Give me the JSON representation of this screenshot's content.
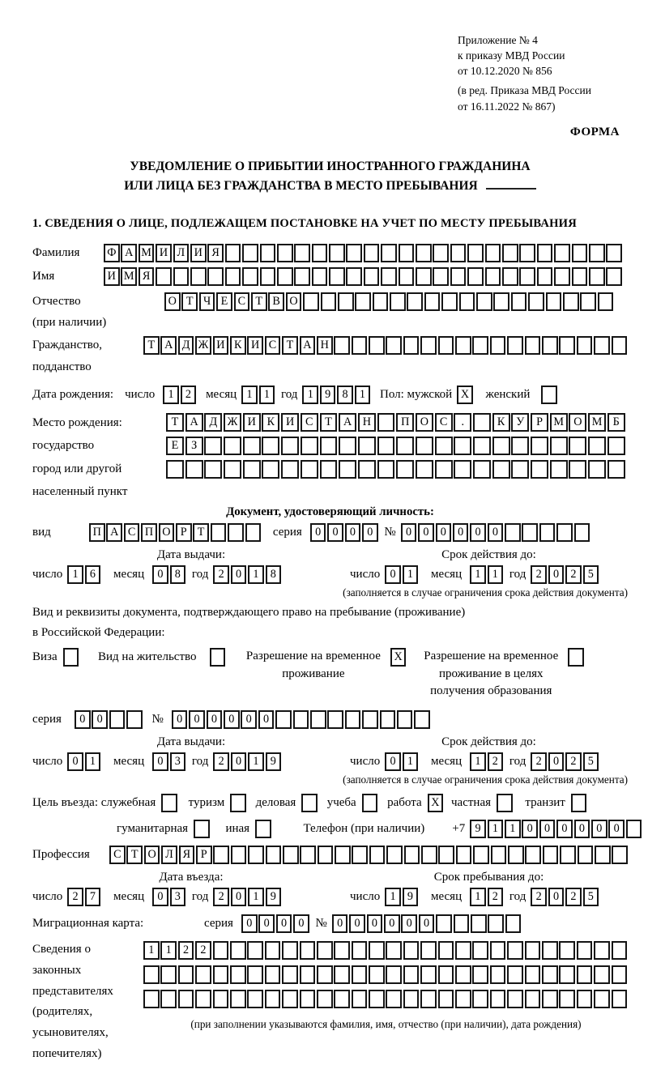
{
  "header": {
    "line1": "Приложение № 4",
    "line2": "к приказу МВД России",
    "line3": "от 10.12.2020 № 856",
    "line4": "(в ред. Приказа МВД России",
    "line5": "от 16.11.2022 № 867)",
    "forma": "ФОРМА"
  },
  "title": {
    "line1": "УВЕДОМЛЕНИЕ О ПРИБЫТИИ ИНОСТРАННОГО ГРАЖДАНИНА",
    "line2": "ИЛИ ЛИЦА БЕЗ ГРАЖДАНСТВА В МЕСТО ПРЕБЫВАНИЯ"
  },
  "section1": "1. СВЕДЕНИЯ О ЛИЦЕ, ПОДЛЕЖАЩЕМ ПОСТАНОВКЕ НА УЧЕТ ПО МЕСТУ ПРЕБЫВАНИЯ",
  "labels": {
    "surname": "Фамилия",
    "name": "Имя",
    "patronymic_l1": "Отчество",
    "patronymic_l2": "(при наличии)",
    "citizenship_l1": "Гражданство,",
    "citizenship_l2": "подданство",
    "birthdate": "Дата рождения:",
    "day": "число",
    "month": "месяц",
    "year": "год",
    "sex": "Пол: мужской",
    "female": "женский",
    "birthplace_l1": "Место рождения:",
    "birthplace_l2": "государство",
    "birthplace_l3": "город или другой",
    "birthplace_l4": "населенный пункт",
    "id_doc_header": "Документ, удостоверяющий личность:",
    "vid": "вид",
    "seriya": "серия",
    "num": "№",
    "issue_date": "Дата выдачи:",
    "valid_until": "Срок действия до:",
    "valid_note": "(заполняется в случае ограничения срока действия документа)",
    "stay_doc_l1": "Вид и реквизиты документа, подтверждающего право на пребывание (проживание)",
    "stay_doc_l2": "в Российской Федерации:",
    "visa": "Виза",
    "residence_permit": "Вид на жительство",
    "rvp_l1": "Разрешение на временное",
    "rvp_l2": "проживание",
    "rvpo_l1": "Разрешение на временное",
    "rvpo_l2": "проживание в целях",
    "rvpo_l3": "получения образования",
    "purpose": "Цель въезда: служебная",
    "tourism": "туризм",
    "business": "деловая",
    "study": "учеба",
    "work": "работа",
    "private": "частная",
    "transit": "транзит",
    "humanitarian": "гуманитарная",
    "other": "иная",
    "phone": "Телефон (при наличии)",
    "plus7": "+7",
    "profession": "Профессия",
    "entry_date": "Дата въезда:",
    "stay_until": "Срок пребывания до:",
    "migration_card": "Миграционная карта:",
    "rep_l1": "Сведения о",
    "rep_l2": "законных",
    "rep_l3": "представителях",
    "rep_l4": "(родителях,",
    "rep_l5": "усыновителях,",
    "rep_l6": "попечителях)",
    "rep_note": "(при заполнении указываются фамилия, имя, отчество (при наличии), дата рождения)"
  },
  "fields": {
    "surname": {
      "count": 30,
      "value": "ФАМИЛИЯ"
    },
    "name": {
      "count": 30,
      "value": "ИМЯ"
    },
    "patronymic": {
      "count": 26,
      "value": "ОТЧЕСТВО"
    },
    "citizenship": {
      "count": 28,
      "value": "ТАДЖИКИСТАН"
    },
    "birth_day": {
      "count": 2,
      "value": "12"
    },
    "birth_month": {
      "count": 2,
      "value": "11"
    },
    "birth_year": {
      "count": 4,
      "value": "1981"
    },
    "sex_male": {
      "count": 1,
      "value": "X"
    },
    "sex_female": {
      "count": 1,
      "value": ""
    },
    "birthplace1": {
      "count": 24,
      "value": "ТАДЖИКИСТАН ПОС. КУРМОМБ"
    },
    "birthplace2": {
      "count": 24,
      "value": "ЕЗ"
    },
    "birthplace3": {
      "count": 24,
      "value": ""
    },
    "doc_type": {
      "count": 10,
      "value": "ПАСПОРТ"
    },
    "doc_series": {
      "count": 4,
      "value": "0000"
    },
    "doc_number": {
      "count": 11,
      "value": "000000"
    },
    "doc_issue_day": {
      "count": 2,
      "value": "16"
    },
    "doc_issue_month": {
      "count": 2,
      "value": "08"
    },
    "doc_issue_year": {
      "count": 4,
      "value": "2018"
    },
    "doc_valid_day": {
      "count": 2,
      "value": "01"
    },
    "doc_valid_month": {
      "count": 2,
      "value": "11"
    },
    "doc_valid_year": {
      "count": 4,
      "value": "2025"
    },
    "visa_cb": {
      "count": 1,
      "value": ""
    },
    "residence_cb": {
      "count": 1,
      "value": ""
    },
    "rvp_cb": {
      "count": 1,
      "value": "X"
    },
    "rvpo_cb": {
      "count": 1,
      "value": ""
    },
    "stay_series": {
      "count": 4,
      "value": "00"
    },
    "stay_number": {
      "count": 15,
      "value": "000000"
    },
    "stay_issue_day": {
      "count": 2,
      "value": "01"
    },
    "stay_issue_month": {
      "count": 2,
      "value": "03"
    },
    "stay_issue_year": {
      "count": 4,
      "value": "2019"
    },
    "stay_valid_day": {
      "count": 2,
      "value": "01"
    },
    "stay_valid_month": {
      "count": 2,
      "value": "12"
    },
    "stay_valid_year": {
      "count": 4,
      "value": "2025"
    },
    "official_cb": {
      "count": 1,
      "value": ""
    },
    "tourism_cb": {
      "count": 1,
      "value": ""
    },
    "business_cb": {
      "count": 1,
      "value": ""
    },
    "study_cb": {
      "count": 1,
      "value": ""
    },
    "work_cb": {
      "count": 1,
      "value": "X"
    },
    "private_cb": {
      "count": 1,
      "value": ""
    },
    "transit_cb": {
      "count": 1,
      "value": ""
    },
    "humanitarian_cb": {
      "count": 1,
      "value": ""
    },
    "other_cb": {
      "count": 1,
      "value": ""
    },
    "phone": {
      "count": 10,
      "value": "911000000"
    },
    "profession": {
      "count": 30,
      "value": "СТОЛЯР"
    },
    "entry_day": {
      "count": 2,
      "value": "27"
    },
    "entry_month": {
      "count": 2,
      "value": "03"
    },
    "entry_year": {
      "count": 4,
      "value": "2019"
    },
    "stayuntil_day": {
      "count": 2,
      "value": "19"
    },
    "stayuntil_month": {
      "count": 2,
      "value": "12"
    },
    "stayuntil_year": {
      "count": 4,
      "value": "2025"
    },
    "mig_series": {
      "count": 4,
      "value": "0000"
    },
    "mig_number": {
      "count": 11,
      "value": "000000"
    },
    "rep_row1": {
      "count": 28,
      "value": "1122"
    },
    "rep_row2": {
      "count": 28,
      "value": ""
    },
    "rep_row3": {
      "count": 28,
      "value": ""
    }
  }
}
